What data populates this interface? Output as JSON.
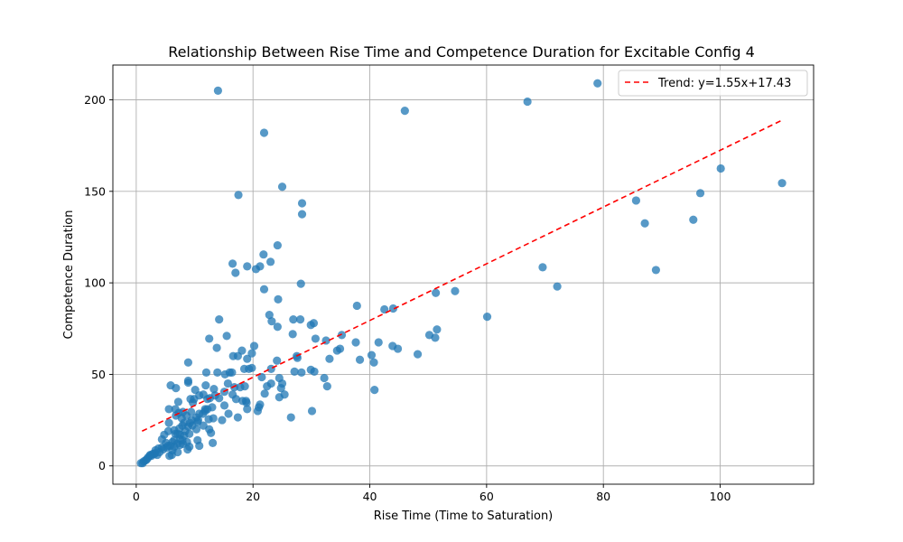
{
  "chart_data": {
    "type": "scatter",
    "title": "Relationship Between Rise Time and Competence Duration for Excitable Config 4",
    "xlabel": "Rise Time (Time to Saturation)",
    "ylabel": "Competence Duration",
    "xlim": [
      -4,
      116
    ],
    "ylim": [
      -10,
      219
    ],
    "xticks": [
      0,
      20,
      40,
      60,
      80,
      100
    ],
    "xtick_labels": [
      "0",
      "20",
      "40",
      "60",
      "80",
      "100"
    ],
    "yticks": [
      0,
      50,
      100,
      150,
      200
    ],
    "ytick_labels": [
      "0",
      "50",
      "100",
      "150",
      "200"
    ],
    "grid": true,
    "legend_position": "top-right",
    "point_color": "#1f77b4",
    "trend_color": "#ff0000",
    "trend": {
      "label": "Trend: y=1.55x+17.43",
      "slope": 1.55,
      "intercept": 17.43,
      "x_range": [
        1,
        110.5
      ]
    },
    "points": [
      [
        14,
        205
      ],
      [
        21.9,
        182
      ],
      [
        46,
        194
      ],
      [
        67,
        199
      ],
      [
        79,
        209
      ],
      [
        25,
        152.5
      ],
      [
        17.5,
        148
      ],
      [
        28.4,
        143.5
      ],
      [
        28.4,
        137.5
      ],
      [
        24.2,
        120.5
      ],
      [
        21.8,
        115.5
      ],
      [
        23,
        111.5
      ],
      [
        19,
        109
      ],
      [
        21.2,
        109
      ],
      [
        16.5,
        110.5
      ],
      [
        17,
        105.5
      ],
      [
        20.5,
        107.5
      ],
      [
        28.2,
        99.5
      ],
      [
        21.9,
        96.5
      ],
      [
        24.3,
        91
      ],
      [
        14.2,
        80
      ],
      [
        22.8,
        82.5
      ],
      [
        23.2,
        79
      ],
      [
        24.2,
        76
      ],
      [
        26.9,
        80
      ],
      [
        28.1,
        80
      ],
      [
        29.9,
        77
      ],
      [
        30.4,
        78
      ],
      [
        26.8,
        72
      ],
      [
        15.5,
        71
      ],
      [
        12.5,
        69.5
      ],
      [
        30.7,
        69.5
      ],
      [
        32.5,
        68.5
      ],
      [
        35.2,
        71.5
      ],
      [
        37.6,
        67.5
      ],
      [
        20.2,
        65.5
      ],
      [
        13.8,
        64.5
      ],
      [
        18.1,
        63
      ],
      [
        19.8,
        61.5
      ],
      [
        16.6,
        60
      ],
      [
        17.4,
        60
      ],
      [
        19,
        58.5
      ],
      [
        8.9,
        56.5
      ],
      [
        24.1,
        57.5
      ],
      [
        27.5,
        60
      ],
      [
        27.6,
        59
      ],
      [
        33.1,
        58.5
      ],
      [
        34.4,
        63
      ],
      [
        34.9,
        64
      ],
      [
        38.3,
        58
      ],
      [
        40.3,
        60.5
      ],
      [
        40.7,
        56.5
      ],
      [
        41.5,
        67.5
      ],
      [
        43.9,
        65.5
      ],
      [
        44.8,
        64
      ],
      [
        48.2,
        61
      ],
      [
        42.5,
        85.5
      ],
      [
        44,
        86
      ],
      [
        37.8,
        87.5
      ],
      [
        50.2,
        71.5
      ],
      [
        51.5,
        74.5
      ],
      [
        51.2,
        70
      ],
      [
        60.1,
        81.5
      ],
      [
        51.3,
        94.5
      ],
      [
        54.6,
        95.5
      ],
      [
        72.1,
        98
      ],
      [
        69.6,
        108.5
      ],
      [
        89,
        107
      ],
      [
        85.6,
        145
      ],
      [
        87.1,
        132.5
      ],
      [
        95.4,
        134.5
      ],
      [
        96.6,
        149
      ],
      [
        100.1,
        162.5
      ],
      [
        110.6,
        154.5
      ],
      [
        18.5,
        53
      ],
      [
        19.3,
        53
      ],
      [
        19.8,
        53.5
      ],
      [
        23.1,
        53
      ],
      [
        24.5,
        48
      ],
      [
        25,
        45
      ],
      [
        24.8,
        42.5
      ],
      [
        25.4,
        39
      ],
      [
        24.5,
        37.5
      ],
      [
        23.1,
        45
      ],
      [
        21.5,
        48.5
      ],
      [
        22.4,
        43.5
      ],
      [
        22,
        39.5
      ],
      [
        21.2,
        33.5
      ],
      [
        21,
        32
      ],
      [
        20.8,
        30
      ],
      [
        26.5,
        26.5
      ],
      [
        30.1,
        30
      ],
      [
        27.1,
        51.5
      ],
      [
        28.3,
        51
      ],
      [
        29.9,
        52.5
      ],
      [
        30.5,
        51.5
      ],
      [
        32.2,
        48
      ],
      [
        32.7,
        43.5
      ],
      [
        40.8,
        41.5
      ],
      [
        12,
        51
      ],
      [
        13.9,
        51
      ],
      [
        15.2,
        50
      ],
      [
        16,
        51
      ],
      [
        16.4,
        51
      ],
      [
        15.7,
        45
      ],
      [
        16.8,
        43
      ],
      [
        17.8,
        43
      ],
      [
        18.6,
        43.5
      ],
      [
        13.3,
        42
      ],
      [
        11.9,
        44
      ],
      [
        10.1,
        41.5
      ],
      [
        9.3,
        36.5
      ],
      [
        9.9,
        36.5
      ],
      [
        10.8,
        38.5
      ],
      [
        11.5,
        39
      ],
      [
        12.2,
        36.5
      ],
      [
        12.6,
        37
      ],
      [
        13.5,
        38.5
      ],
      [
        14.2,
        37
      ],
      [
        15.1,
        40.5
      ],
      [
        16.5,
        39
      ],
      [
        17.1,
        36.5
      ],
      [
        18.2,
        35.5
      ],
      [
        18.8,
        35.5
      ],
      [
        18.9,
        34.5
      ],
      [
        19,
        31
      ],
      [
        17.4,
        26.5
      ],
      [
        15.1,
        33
      ],
      [
        15.8,
        28.5
      ],
      [
        14.7,
        25
      ],
      [
        13.2,
        26
      ],
      [
        13,
        32
      ],
      [
        12.2,
        31
      ],
      [
        11.8,
        30
      ],
      [
        11.4,
        28.5
      ],
      [
        12.4,
        25.5
      ],
      [
        10.5,
        24
      ],
      [
        10.3,
        26.5
      ],
      [
        9.5,
        25
      ],
      [
        9.4,
        29.5
      ],
      [
        8.6,
        27.5
      ],
      [
        7.8,
        26
      ],
      [
        8,
        29.5
      ],
      [
        7.3,
        29
      ],
      [
        6.7,
        31
      ],
      [
        5.6,
        31
      ],
      [
        6.8,
        27.5
      ],
      [
        7.2,
        35
      ],
      [
        6.8,
        42.5
      ],
      [
        5.9,
        44
      ],
      [
        8.9,
        45.5
      ],
      [
        8.9,
        46.5
      ],
      [
        8.2,
        23.5
      ],
      [
        7.9,
        22
      ],
      [
        7.4,
        20.5
      ],
      [
        6.5,
        19.5
      ],
      [
        5.6,
        23.5
      ],
      [
        5.5,
        19
      ],
      [
        4.8,
        17
      ],
      [
        4.4,
        14.5
      ],
      [
        5.1,
        12.5
      ],
      [
        5.4,
        11
      ],
      [
        4.4,
        10
      ],
      [
        3.8,
        9.5
      ],
      [
        3.3,
        8.5
      ],
      [
        3.2,
        7
      ],
      [
        2.8,
        6.5
      ],
      [
        2.6,
        5.5
      ],
      [
        2.3,
        5.5
      ],
      [
        2,
        4.5
      ],
      [
        1.8,
        3.5
      ],
      [
        1.6,
        3
      ],
      [
        1.3,
        2.5
      ],
      [
        1.1,
        1.5
      ],
      [
        0.8,
        1.5
      ],
      [
        2.4,
        6
      ],
      [
        3.1,
        6.5
      ],
      [
        3.6,
        6
      ],
      [
        4,
        7.5
      ],
      [
        4.6,
        9
      ],
      [
        5.2,
        10
      ],
      [
        5.8,
        11
      ],
      [
        6.2,
        13
      ],
      [
        6.5,
        14
      ],
      [
        6.7,
        17.5
      ],
      [
        7.1,
        17.5
      ],
      [
        7.5,
        17
      ],
      [
        8.2,
        16.5
      ],
      [
        7.5,
        14.5
      ],
      [
        7.5,
        11.5
      ],
      [
        8,
        12
      ],
      [
        8.7,
        13
      ],
      [
        9.1,
        17.5
      ],
      [
        8.9,
        21.5
      ],
      [
        9.6,
        22
      ],
      [
        10.3,
        20
      ],
      [
        10.6,
        25
      ],
      [
        11.5,
        22
      ],
      [
        12.5,
        20
      ],
      [
        12.8,
        18
      ],
      [
        13.1,
        12.5
      ],
      [
        10.8,
        11
      ],
      [
        10.5,
        14
      ],
      [
        9.1,
        10.5
      ],
      [
        8.8,
        9
      ],
      [
        7.1,
        7.5
      ],
      [
        6.1,
        6
      ],
      [
        5.7,
        5.5
      ],
      [
        6.2,
        8.5
      ],
      [
        6.5,
        10.5
      ],
      [
        7,
        12
      ],
      [
        7.9,
        14
      ],
      [
        8.4,
        19
      ],
      [
        9.2,
        23.5
      ],
      [
        10.8,
        28.5
      ],
      [
        11.8,
        31
      ],
      [
        9.7,
        34.5
      ]
    ]
  }
}
